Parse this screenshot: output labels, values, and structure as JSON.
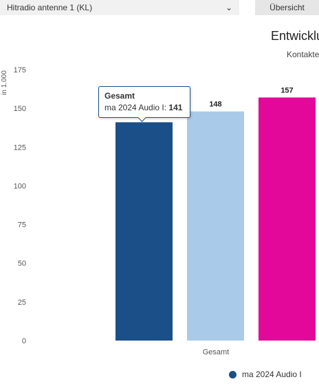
{
  "controls": {
    "station_value": "Hitradio antenne 1 (KL)",
    "overview_label": "Übersicht"
  },
  "title": "Entwicklu",
  "subtitle": "Kontakte",
  "icons": {
    "dropdown": "chevron-down-icon"
  },
  "colors": {
    "series1": "#1a4f87",
    "series2": "#a9cbe9",
    "series3": "#e3079a"
  },
  "tooltip": {
    "title": "Gesamt",
    "label": "ma 2024 Audio I:",
    "value": "141"
  },
  "legend": {
    "items": [
      "ma 2024 Audio I"
    ]
  },
  "chart_data": {
    "type": "bar",
    "categories": [
      "Gesamt"
    ],
    "ylabel": "in 1.000",
    "ylim": [
      0,
      175
    ],
    "yticks": [
      0,
      25,
      50,
      75,
      100,
      125,
      150,
      175
    ],
    "grid": false,
    "series": [
      {
        "name": "ma 2024 Audio I",
        "values": [
          141
        ],
        "color": "#1a4f87"
      },
      {
        "values": [
          148
        ],
        "color": "#a9cbe9"
      },
      {
        "values": [
          157
        ],
        "color": "#e3079a"
      }
    ]
  }
}
